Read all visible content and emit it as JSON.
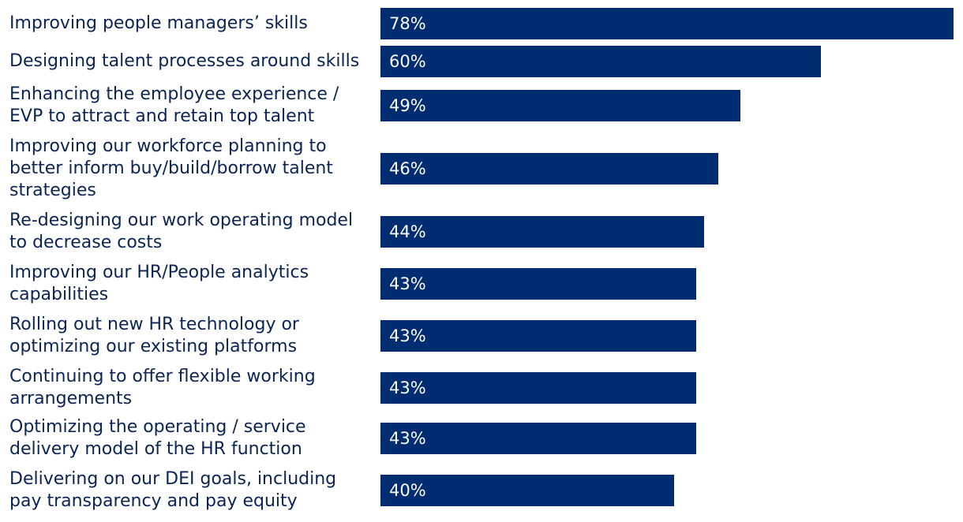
{
  "chart_data": {
    "type": "bar",
    "orientation": "horizontal",
    "bar_color": "#002d72",
    "categories": [
      "Improving people managers’ skills",
      "Designing talent processes around skills",
      "Enhancing the employee experience /\nEVP to attract and retain top talent",
      "Improving our workforce planning to\nbetter inform buy/build/borrow talent\nstrategies",
      "Re-designing our work operating model\nto decrease costs",
      "Improving our HR/People analytics\ncapabilities",
      "Rolling out new HR technology or\noptimizing our existing platforms",
      "Continuing to offer flexible working\narrangements",
      "Optimizing the operating / service\ndelivery model of the HR function",
      "Delivering on our DEI goals, including\npay transparency and pay equity"
    ],
    "values": [
      78,
      60,
      49,
      46,
      44,
      43,
      43,
      43,
      43,
      40
    ],
    "value_labels": [
      "78%",
      "60%",
      "49%",
      "46%",
      "44%",
      "43%",
      "43%",
      "43%",
      "43%",
      "40%"
    ],
    "xlim": [
      0,
      78
    ],
    "grid": false,
    "legend": "none"
  }
}
